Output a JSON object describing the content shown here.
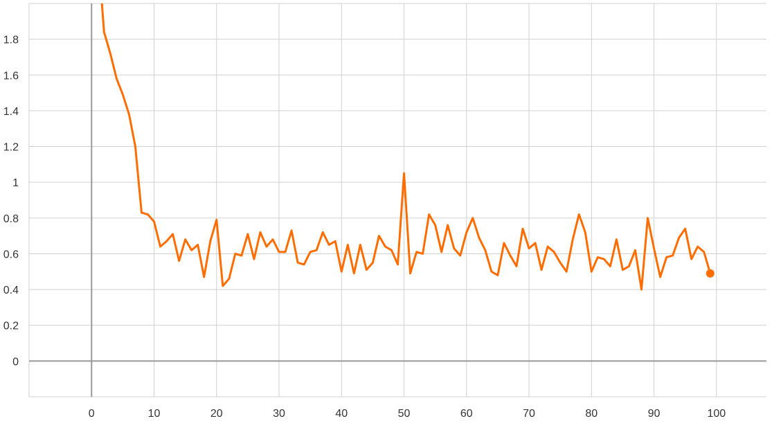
{
  "chart_data": {
    "type": "line",
    "title": "",
    "xlabel": "",
    "ylabel": "",
    "xlim": [
      -10,
      108
    ],
    "ylim": [
      -0.2,
      2.0
    ],
    "x_ticks": [
      0,
      10,
      20,
      30,
      40,
      50,
      60,
      70,
      80,
      90,
      100
    ],
    "x_tick_labels": [
      "0",
      "10",
      "20",
      "30",
      "40",
      "50",
      "60",
      "70",
      "80",
      "90",
      "100"
    ],
    "y_ticks": [
      0,
      0.2,
      0.4,
      0.6,
      0.8,
      1,
      1.2,
      1.4,
      1.6,
      1.8
    ],
    "y_tick_labels": [
      "0",
      "0.2",
      "0.4",
      "0.6",
      "0.8",
      "1",
      "1.2",
      "1.4",
      "1.6",
      "1.8"
    ],
    "grid": true,
    "legend": "none",
    "series": [
      {
        "color": "#ff6d00",
        "x": [
          1,
          2,
          3,
          4,
          5,
          6,
          7,
          8,
          9,
          10,
          11,
          12,
          13,
          14,
          15,
          16,
          17,
          18,
          19,
          20,
          21,
          22,
          23,
          24,
          25,
          26,
          27,
          28,
          29,
          30,
          31,
          32,
          33,
          34,
          35,
          36,
          37,
          38,
          39,
          40,
          41,
          42,
          43,
          44,
          45,
          46,
          47,
          48,
          49,
          50,
          51,
          52,
          53,
          54,
          55,
          56,
          57,
          58,
          59,
          60,
          61,
          62,
          63,
          64,
          65,
          66,
          67,
          68,
          69,
          70,
          71,
          72,
          73,
          74,
          75,
          76,
          77,
          78,
          79,
          80,
          81,
          82,
          83,
          84,
          85,
          86,
          87,
          88,
          89,
          90,
          91,
          92,
          93,
          94,
          95,
          96,
          97,
          98,
          99
        ],
        "y": [
          2.3,
          1.84,
          1.72,
          1.58,
          1.49,
          1.38,
          1.2,
          0.83,
          0.82,
          0.78,
          0.64,
          0.67,
          0.71,
          0.56,
          0.68,
          0.62,
          0.65,
          0.47,
          0.67,
          0.79,
          0.42,
          0.46,
          0.6,
          0.59,
          0.71,
          0.57,
          0.72,
          0.64,
          0.68,
          0.61,
          0.61,
          0.73,
          0.55,
          0.54,
          0.61,
          0.62,
          0.72,
          0.65,
          0.67,
          0.5,
          0.65,
          0.49,
          0.65,
          0.51,
          0.55,
          0.7,
          0.64,
          0.62,
          0.54,
          1.05,
          0.49,
          0.61,
          0.6,
          0.82,
          0.76,
          0.61,
          0.76,
          0.63,
          0.59,
          0.72,
          0.8,
          0.69,
          0.62,
          0.5,
          0.48,
          0.66,
          0.59,
          0.53,
          0.74,
          0.63,
          0.66,
          0.51,
          0.64,
          0.61,
          0.55,
          0.5,
          0.68,
          0.82,
          0.72,
          0.5,
          0.58,
          0.57,
          0.53,
          0.68,
          0.51,
          0.53,
          0.62,
          0.4,
          0.8,
          0.63,
          0.47,
          0.58,
          0.59,
          0.69,
          0.74,
          0.57,
          0.64,
          0.61,
          0.49
        ]
      }
    ]
  }
}
